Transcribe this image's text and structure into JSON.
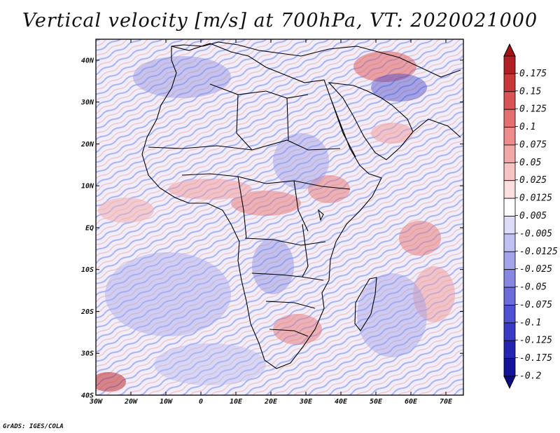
{
  "title": "Vertical velocity [m/s] at 700hPa, VT: 2020021000",
  "credit": "GrADS: IGES/COLA",
  "map": {
    "variable": "Vertical velocity",
    "units": "m/s",
    "level": "700hPa",
    "valid_time": "2020021000",
    "lon_range": [
      -30,
      75
    ],
    "lat_range": [
      -40,
      45
    ],
    "lon_ticks": [
      {
        "value": -30,
        "label": "30W"
      },
      {
        "value": -20,
        "label": "20W"
      },
      {
        "value": -10,
        "label": "10W"
      },
      {
        "value": 0,
        "label": "0"
      },
      {
        "value": 10,
        "label": "10E"
      },
      {
        "value": 20,
        "label": "20E"
      },
      {
        "value": 30,
        "label": "30E"
      },
      {
        "value": 40,
        "label": "40E"
      },
      {
        "value": 50,
        "label": "50E"
      },
      {
        "value": 60,
        "label": "60E"
      },
      {
        "value": 70,
        "label": "70E"
      }
    ],
    "lat_ticks": [
      {
        "value": 40,
        "label": "40N"
      },
      {
        "value": 30,
        "label": "30N"
      },
      {
        "value": 20,
        "label": "20N"
      },
      {
        "value": 10,
        "label": "10N"
      },
      {
        "value": 0,
        "label": "EQ"
      },
      {
        "value": -10,
        "label": "10S"
      },
      {
        "value": -20,
        "label": "20S"
      },
      {
        "value": -30,
        "label": "30S"
      },
      {
        "value": -40,
        "label": "40S"
      }
    ]
  },
  "colorbar": {
    "levels": [
      {
        "label": "0.175",
        "color": "#b01f24"
      },
      {
        "label": "0.15",
        "color": "#c83a3a"
      },
      {
        "label": "0.125",
        "color": "#d95555"
      },
      {
        "label": "0.1",
        "color": "#e57070"
      },
      {
        "label": "0.075",
        "color": "#ee8c8c"
      },
      {
        "label": "0.05",
        "color": "#f3a8a8"
      },
      {
        "label": "0.025",
        "color": "#f8c3c3"
      },
      {
        "label": "0.0125",
        "color": "#fcdede"
      },
      {
        "label": "0.005",
        "color": "#ffffff"
      },
      {
        "label": "-0.005",
        "color": "#dcdcf8"
      },
      {
        "label": "-0.0125",
        "color": "#c0c0f2"
      },
      {
        "label": "-0.025",
        "color": "#a4a4ec"
      },
      {
        "label": "-0.05",
        "color": "#8888e4"
      },
      {
        "label": "-0.075",
        "color": "#6c6cdc"
      },
      {
        "label": "-0.1",
        "color": "#5050d2"
      },
      {
        "label": "-0.125",
        "color": "#3a3ac4"
      },
      {
        "label": "-0.175",
        "color": "#2424b0"
      },
      {
        "label": "-0.2",
        "color": "#14149a"
      }
    ],
    "top_arrow_color": "#a01418",
    "bottom_arrow_color": "#0c0c80"
  }
}
